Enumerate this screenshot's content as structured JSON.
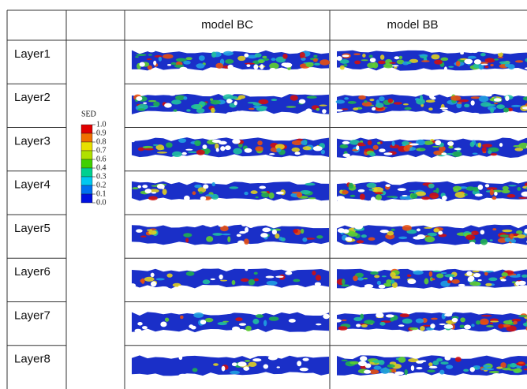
{
  "table": {
    "header": [
      "model BC",
      "model BB"
    ],
    "rows": [
      "Layer1",
      "Layer2",
      "Layer3",
      "Layer4",
      "Layer5",
      "Layer6",
      "Layer7",
      "Layer8"
    ]
  },
  "legend": {
    "title": "SED",
    "labels": [
      "1.0",
      "0.9",
      "0.8",
      "0.7",
      "0.6",
      "0.4",
      "0.3",
      "0.2",
      "0.1",
      "0.0"
    ]
  }
}
